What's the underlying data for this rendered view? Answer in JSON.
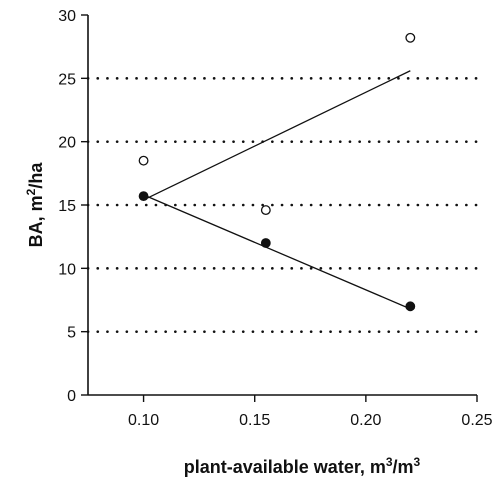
{
  "chart_data": {
    "type": "scatter",
    "xlabel": "plant-available water, m³/m³",
    "xlabel_parts": [
      "plant-available water, m",
      "3",
      "/m",
      "3"
    ],
    "ylabel": "BA, m²/ha",
    "ylabel_parts": [
      "BA, m",
      "2",
      "/ha"
    ],
    "xlim": [
      0.075,
      0.25
    ],
    "ylim": [
      0,
      30
    ],
    "xticks": [
      0.1,
      0.15,
      0.2,
      0.25
    ],
    "xtick_labels": [
      "0.10",
      "0.15",
      "0.20",
      "0.25"
    ],
    "yticks": [
      0,
      5,
      10,
      15,
      20,
      25,
      30
    ],
    "ytick_labels": [
      "0",
      "5",
      "10",
      "15",
      "20",
      "25",
      "30"
    ],
    "grid": "horizontal dotted at y = 5, 10, 15, 20, 25",
    "series": [
      {
        "marker": "open-circle",
        "color": "#111111",
        "points": [
          {
            "x": 0.1,
            "y": 18.5
          },
          {
            "x": 0.155,
            "y": 14.6
          },
          {
            "x": 0.22,
            "y": 28.2
          }
        ],
        "trend_line": [
          {
            "x": 0.1,
            "y": 15.4
          },
          {
            "x": 0.22,
            "y": 25.6
          }
        ]
      },
      {
        "marker": "filled-circle",
        "color": "#111111",
        "points": [
          {
            "x": 0.1,
            "y": 15.7
          },
          {
            "x": 0.155,
            "y": 12.0
          },
          {
            "x": 0.22,
            "y": 7.0
          }
        ],
        "trend_line": [
          {
            "x": 0.1,
            "y": 15.8
          },
          {
            "x": 0.22,
            "y": 6.8
          }
        ]
      }
    ]
  }
}
